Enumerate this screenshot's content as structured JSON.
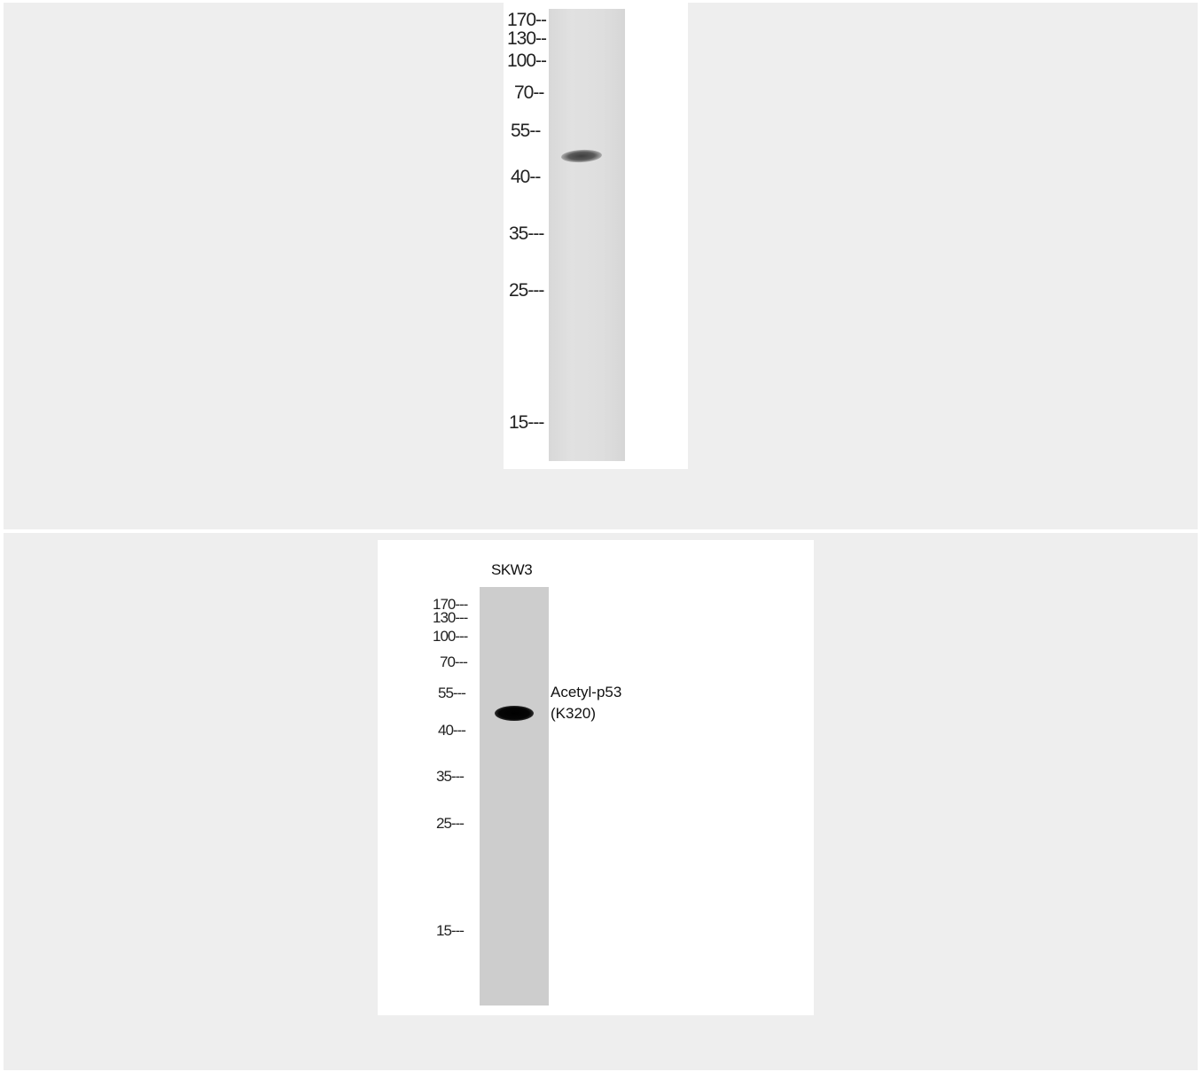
{
  "top_blot": {
    "markers": [
      {
        "text": "170--"
      },
      {
        "text": "130--"
      },
      {
        "text": "100--"
      },
      {
        "text": "70--"
      },
      {
        "text": "55--"
      },
      {
        "text": "40--"
      },
      {
        "text": "35---"
      },
      {
        "text": "25---"
      },
      {
        "text": "15---"
      }
    ]
  },
  "bottom_blot": {
    "lane_label": "SKW3",
    "protein_label_line1": "Acetyl-p53",
    "protein_label_line2": "(K320)",
    "markers": [
      {
        "text": "170---"
      },
      {
        "text": "130---"
      },
      {
        "text": "100---"
      },
      {
        "text": "70---"
      },
      {
        "text": "55---"
      },
      {
        "text": "40---"
      },
      {
        "text": "35---"
      },
      {
        "text": "25---"
      },
      {
        "text": "15---"
      }
    ]
  }
}
